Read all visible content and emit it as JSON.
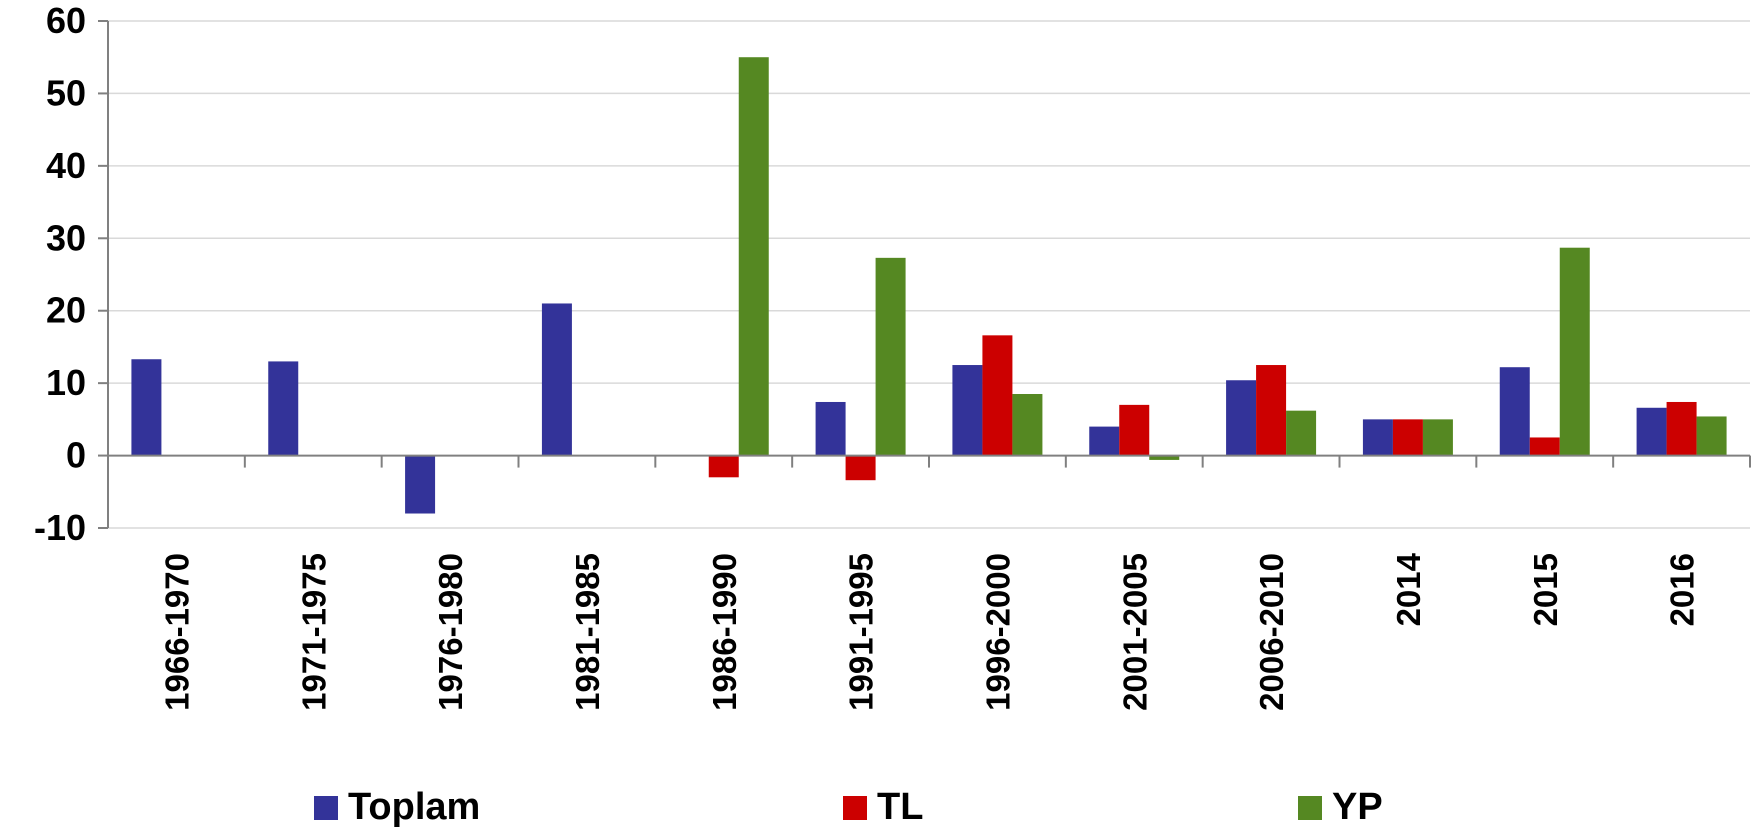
{
  "chart_data": {
    "type": "bar",
    "categories": [
      "1966-1970",
      "1971-1975",
      "1976-1980",
      "1981-1985",
      "1986-1990",
      "1991-1995",
      "1996-2000",
      "2001-2005",
      "2006-2010",
      "2014",
      "2015",
      "2016"
    ],
    "series": [
      {
        "name": "Toplam",
        "color": "#333399",
        "values": [
          13.3,
          13.0,
          -8.0,
          21.0,
          null,
          7.4,
          12.5,
          4.0,
          10.4,
          5.0,
          12.2,
          6.6
        ]
      },
      {
        "name": "TL",
        "color": "#cc0000",
        "values": [
          null,
          null,
          null,
          null,
          -3.0,
          -3.4,
          16.6,
          7.0,
          12.5,
          5.0,
          2.5,
          7.4
        ]
      },
      {
        "name": "YP",
        "color": "#558822",
        "values": [
          null,
          null,
          null,
          null,
          55.0,
          27.3,
          8.5,
          -0.6,
          6.2,
          5.0,
          28.7,
          5.4
        ]
      }
    ],
    "yticks": [
      "60",
      "50",
      "40",
      "30",
      "20",
      "10",
      "0",
      "-10"
    ],
    "ylim": [
      -10,
      60
    ],
    "grid": true,
    "legend_position": "bottom"
  }
}
